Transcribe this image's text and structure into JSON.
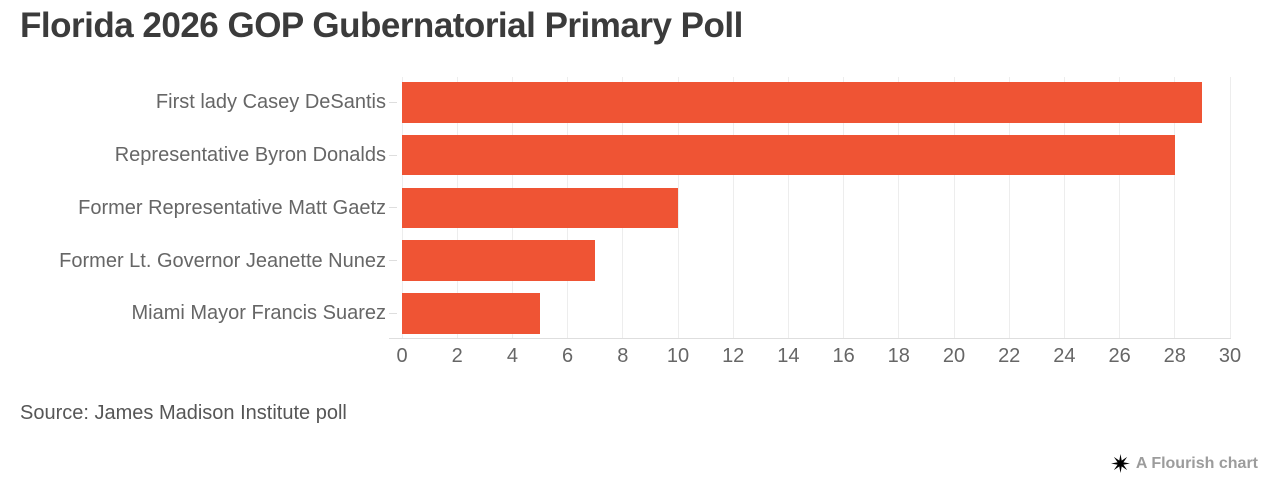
{
  "title": "Florida 2026 GOP Gubernatorial Primary Poll",
  "source_note": "Source: James Madison Institute poll",
  "attribution": {
    "label": "A Flourish chart",
    "icon": "flourish-asterisk-icon"
  },
  "colors": {
    "background": "#FFFFFF",
    "bar": "#EF5434",
    "title": "#3B3B3B",
    "category_label": "#666666",
    "tick_label": "#666666",
    "gridline": "#EDEDED",
    "axis_line": "#DEDEDE",
    "source": "#565656",
    "attribution_text": "#9C9C9C",
    "attribution_icon": "#000000"
  },
  "chart_data": {
    "type": "bar",
    "orientation": "horizontal",
    "title": "Florida 2026 GOP Gubernatorial Primary Poll",
    "categories": [
      "First lady Casey DeSantis",
      "Representative Byron Donalds",
      "Former Representative Matt Gaetz",
      "Former Lt. Governor Jeanette Nunez",
      "Miami Mayor Francis Suarez"
    ],
    "values": [
      29,
      28,
      10,
      7,
      5
    ],
    "xlabel": "",
    "ylabel": "",
    "xlim": [
      0,
      30
    ],
    "xticks": [
      0,
      2,
      4,
      6,
      8,
      10,
      12,
      14,
      16,
      18,
      20,
      22,
      24,
      26,
      28,
      30
    ],
    "grid": true,
    "legend": false,
    "source": "Source: James Madison Institute poll"
  }
}
